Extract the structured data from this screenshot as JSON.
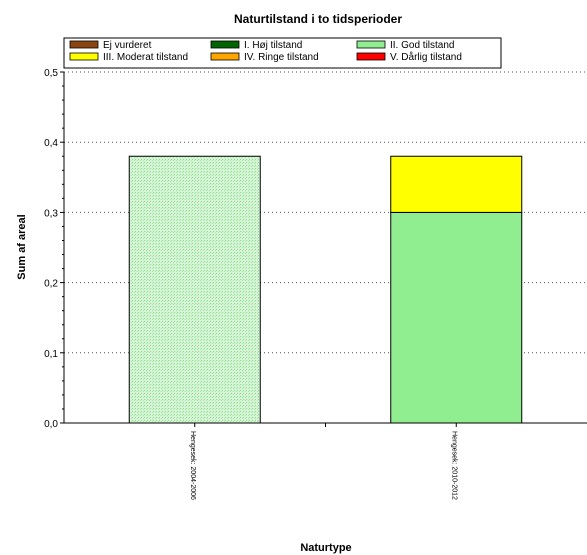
{
  "chart_data": {
    "type": "bar",
    "stacked": true,
    "title": "Naturtilstand i to tidsperioder",
    "xlabel": "Naturtype",
    "ylabel": "Sum af areal",
    "ylim": [
      0,
      0.5
    ],
    "yticks": [
      "0,0",
      "0,1",
      "0,2",
      "0,3",
      "0,4",
      "0,5"
    ],
    "grid": "horizontal-dotted",
    "legend_position": "top",
    "categories": [
      "Hengesek: 2004-2006",
      "Hengesek: 2010-2012"
    ],
    "legend": [
      {
        "name": "Ej vurderet",
        "color": "#8B4513"
      },
      {
        "name": "I. Høj tilstand",
        "color": "#006400"
      },
      {
        "name": "II. God tilstand",
        "color": "#90EE90"
      },
      {
        "name": "III. Moderat tilstand",
        "color": "#FFFF00"
      },
      {
        "name": "IV. Ringe tilstand",
        "color": "#FFA500"
      },
      {
        "name": "V. Dårlig tilstand",
        "color": "#FF0000"
      }
    ],
    "series": [
      {
        "name": "II. God tilstand",
        "color": "#90EE90",
        "values": [
          0.38,
          0.3
        ],
        "hatched": [
          true,
          false
        ]
      },
      {
        "name": "III. Moderat tilstand",
        "color": "#FFFF00",
        "values": [
          0,
          0.08
        ],
        "hatched": [
          false,
          false
        ]
      }
    ]
  }
}
